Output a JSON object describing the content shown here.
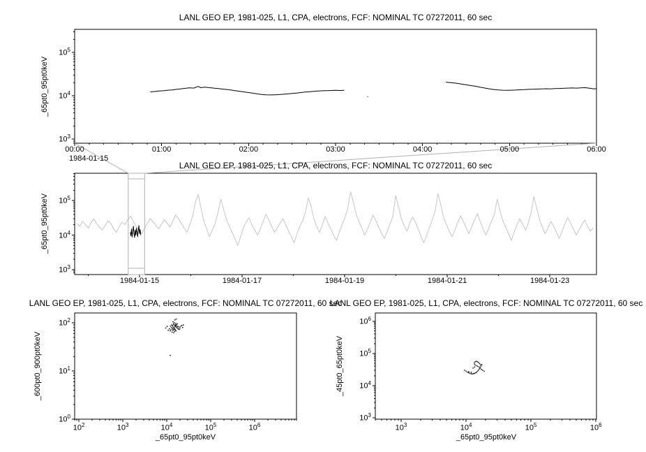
{
  "colors": {
    "background": "#ffffff",
    "frame": "#000000",
    "series_black": "#000000",
    "series_gray": "#c6c6c6",
    "connector_gray": "#b0b0b0"
  },
  "chart_data": [
    {
      "type": "line",
      "title": "LANL GEO EP, 1981-025, L1, CPA, electrons, FCF: NOMINAL TC 07272011, 60 sec",
      "xlabel": "",
      "ylabel": "_65pt0_95pt0keV",
      "x_context_label": "1984-01-15",
      "xaxis": {
        "type": "linear",
        "unit": "hours",
        "min": 0,
        "max": 6,
        "minor_step": 0.1666667,
        "ticks": [
          {
            "v": 0,
            "label": "00:00"
          },
          {
            "v": 1,
            "label": "01:00"
          },
          {
            "v": 2,
            "label": "02:00"
          },
          {
            "v": 3,
            "label": "03:00"
          },
          {
            "v": 4,
            "label": "04:00"
          },
          {
            "v": 5,
            "label": "05:00"
          },
          {
            "v": 6,
            "label": "06:00"
          }
        ]
      },
      "yaxis": {
        "type": "log",
        "min": 800,
        "max": 340000,
        "tick_exponents": [
          3,
          4,
          5
        ]
      },
      "series": [
        {
          "name": "flux-segment-1",
          "type": "line",
          "color": "#000000",
          "points": [
            [
              0.87,
              12200
            ],
            [
              0.92,
              12500
            ],
            [
              0.97,
              12800
            ],
            [
              1.02,
              13000
            ],
            [
              1.07,
              13400
            ],
            [
              1.12,
              13600
            ],
            [
              1.17,
              14000
            ],
            [
              1.22,
              14300
            ],
            [
              1.27,
              14800
            ],
            [
              1.32,
              15200
            ],
            [
              1.37,
              15000
            ],
            [
              1.42,
              16400
            ],
            [
              1.45,
              15300
            ],
            [
              1.5,
              15800
            ],
            [
              1.55,
              15300
            ],
            [
              1.6,
              15000
            ],
            [
              1.65,
              14600
            ],
            [
              1.7,
              14200
            ],
            [
              1.75,
              13900
            ],
            [
              1.8,
              13500
            ],
            [
              1.85,
              13000
            ],
            [
              1.9,
              12600
            ],
            [
              1.95,
              12200
            ],
            [
              2.0,
              11800
            ],
            [
              2.05,
              11400
            ],
            [
              2.1,
              11000
            ],
            [
              2.15,
              10700
            ],
            [
              2.2,
              10500
            ],
            [
              2.25,
              10400
            ],
            [
              2.3,
              10500
            ],
            [
              2.35,
              10600
            ],
            [
              2.4,
              10800
            ],
            [
              2.45,
              11000
            ],
            [
              2.5,
              11300
            ],
            [
              2.55,
              11500
            ],
            [
              2.6,
              11800
            ],
            [
              2.65,
              12100
            ],
            [
              2.7,
              12300
            ],
            [
              2.75,
              12600
            ],
            [
              2.8,
              12800
            ],
            [
              2.85,
              13000
            ],
            [
              2.9,
              13100
            ],
            [
              2.95,
              13200
            ],
            [
              3.0,
              13300
            ],
            [
              3.05,
              13200
            ],
            [
              3.1,
              13300
            ]
          ]
        },
        {
          "name": "flux-segment-2",
          "type": "line",
          "color": "#000000",
          "points": [
            [
              4.27,
              20500
            ],
            [
              4.32,
              20000
            ],
            [
              4.37,
              19600
            ],
            [
              4.42,
              19000
            ],
            [
              4.47,
              18300
            ],
            [
              4.52,
              17600
            ],
            [
              4.57,
              17000
            ],
            [
              4.62,
              16300
            ],
            [
              4.67,
              15600
            ],
            [
              4.72,
              15000
            ],
            [
              4.77,
              14400
            ],
            [
              4.82,
              13900
            ],
            [
              4.87,
              13600
            ],
            [
              4.92,
              13400
            ],
            [
              4.97,
              13300
            ],
            [
              5.02,
              13400
            ],
            [
              5.07,
              13500
            ],
            [
              5.12,
              13700
            ],
            [
              5.17,
              13800
            ],
            [
              5.22,
              14000
            ],
            [
              5.27,
              14100
            ],
            [
              5.32,
              14200
            ],
            [
              5.37,
              14300
            ],
            [
              5.42,
              14500
            ],
            [
              5.47,
              14400
            ],
            [
              5.52,
              14600
            ],
            [
              5.57,
              14700
            ],
            [
              5.62,
              14800
            ],
            [
              5.67,
              15000
            ],
            [
              5.72,
              15100
            ],
            [
              5.77,
              15000
            ],
            [
              5.82,
              15200
            ],
            [
              5.87,
              15300
            ],
            [
              5.92,
              14900
            ],
            [
              5.97,
              14300
            ],
            [
              6.0,
              14600
            ]
          ]
        },
        {
          "name": "isolated-sample",
          "type": "dots",
          "color": "#666666",
          "points": [
            [
              3.37,
              9500
            ]
          ]
        }
      ]
    },
    {
      "type": "line",
      "title": "LANL GEO EP, 1981-025, L1, CPA, electrons, FCF: NOMINAL TC 07272011, 60 sec",
      "xlabel": "",
      "ylabel": "_65pt0_95pt0keV",
      "xaxis": {
        "type": "linear",
        "unit": "day-of-1984-01",
        "min": 13.735,
        "max": 23.91,
        "minor_step": 1,
        "ticks": [
          {
            "v": 15,
            "label": "1984-01-15"
          },
          {
            "v": 17,
            "label": "1984-01-17"
          },
          {
            "v": 19,
            "label": "1984-01-19"
          },
          {
            "v": 21,
            "label": "1984-01-21"
          },
          {
            "v": 23,
            "label": "1984-01-23"
          }
        ]
      },
      "yaxis": {
        "type": "log",
        "min": 720,
        "max": 620000,
        "tick_exponents": [
          3,
          4,
          5
        ]
      },
      "zoom_box": {
        "x_min": 14.78,
        "x_max": 15.1
      },
      "series": [
        {
          "name": "context-flux-gray",
          "type": "line",
          "color": "#c6c6c6",
          "x0": 13.78,
          "dx": 0.055,
          "values": [
            22000,
            18000,
            25000,
            20000,
            16000,
            23000,
            30000,
            21000,
            17000,
            14000,
            19000,
            26000,
            22000,
            15000,
            12000,
            18000,
            24000,
            20000,
            28000,
            35000,
            25000,
            18000,
            14000,
            11000,
            16000,
            22000,
            30000,
            24000,
            19000,
            15000,
            21000,
            28000,
            22000,
            17000,
            26000,
            38000,
            30000,
            22000,
            16000,
            12000,
            20000,
            35000,
            90000,
            150000,
            60000,
            25000,
            15000,
            9000,
            14000,
            22000,
            45000,
            110000,
            55000,
            28000,
            18000,
            12000,
            8000,
            5000,
            9000,
            16000,
            24000,
            32000,
            20000,
            14000,
            10000,
            15000,
            25000,
            40000,
            28000,
            18000,
            12000,
            16000,
            22000,
            30000,
            20000,
            13000,
            9000,
            6000,
            11000,
            18000,
            26000,
            45000,
            120000,
            70000,
            30000,
            18000,
            12000,
            20000,
            35000,
            22000,
            15000,
            10000,
            7000,
            12000,
            20000,
            32000,
            60000,
            180000,
            90000,
            40000,
            25000,
            16000,
            10000,
            15000,
            24000,
            38000,
            26000,
            17000,
            11000,
            8000,
            13000,
            21000,
            35000,
            140000,
            65000,
            30000,
            19000,
            13000,
            22000,
            33000,
            24000,
            15000,
            9000,
            6000,
            10000,
            17000,
            28000,
            50000,
            160000,
            75000,
            32000,
            20000,
            13000,
            9000,
            14000,
            23000,
            36000,
            25000,
            16000,
            11000,
            18000,
            28000,
            42000,
            24000,
            15000,
            10000,
            16000,
            26000,
            40000,
            110000,
            50000,
            26000,
            17000,
            11000,
            7000,
            12000,
            20000,
            30000,
            21000,
            14000,
            22000,
            45000,
            130000,
            60000,
            28000,
            17000,
            11000,
            16000,
            25000,
            18000,
            12000,
            8000,
            13000,
            21000,
            32000,
            22000,
            15000,
            10000,
            14000,
            20000,
            27000,
            18000,
            13000,
            16000
          ]
        },
        {
          "name": "highlighted-interval-black",
          "type": "line",
          "color": "#000000",
          "x0": 14.82,
          "dx": 0.012,
          "values": [
            12000,
            9500,
            15000,
            8800,
            13000,
            18000,
            11000,
            8500,
            14000,
            10000,
            16000,
            12000,
            9000,
            13500,
            19000,
            11000,
            14500,
            10000
          ]
        }
      ]
    },
    {
      "type": "scatter",
      "title": "LANL GEO EP, 1981-025, L1, CPA, electrons, FCF: NOMINAL TC 07272011, 60 sec",
      "xlabel": "_65pt0_95pt0keV",
      "ylabel": "_600pt0_900pt0keV",
      "xaxis": {
        "type": "log",
        "min": 80,
        "max": 9000000,
        "tick_exponents": [
          2,
          3,
          4,
          5,
          6
        ]
      },
      "yaxis": {
        "type": "log",
        "min": 1,
        "max": 160,
        "tick_exponents": [
          0,
          1,
          2
        ]
      },
      "series": [
        {
          "name": "scatter-points",
          "type": "dots",
          "color": "#000000",
          "points": [
            [
              12000,
              68
            ],
            [
              13500,
              75
            ],
            [
              14000,
              82
            ],
            [
              15000,
              78
            ],
            [
              16000,
              85
            ],
            [
              14500,
              72
            ],
            [
              13000,
              90
            ],
            [
              15500,
              88
            ],
            [
              17000,
              80
            ],
            [
              18000,
              76
            ],
            [
              16500,
              92
            ],
            [
              14200,
              95
            ],
            [
              13800,
              70
            ],
            [
              15200,
              74
            ],
            [
              16800,
              86
            ],
            [
              19000,
              82
            ],
            [
              20000,
              78
            ],
            [
              21000,
              85
            ],
            [
              17500,
              95
            ],
            [
              14800,
              100
            ],
            [
              13200,
              64
            ],
            [
              12500,
              72
            ],
            [
              15800,
              90
            ],
            [
              16200,
              68
            ],
            [
              18500,
              74
            ],
            [
              22000,
              88
            ],
            [
              12800,
              80
            ],
            [
              14100,
              77
            ],
            [
              15400,
              83
            ],
            [
              16900,
              79
            ],
            [
              13600,
              87
            ],
            [
              14700,
              91
            ],
            [
              15100,
              66
            ],
            [
              17800,
              84
            ],
            [
              19500,
              73
            ],
            [
              23000,
              80
            ],
            [
              11500,
              75
            ],
            [
              12200,
              85
            ],
            [
              16100,
              97
            ],
            [
              14400,
              62
            ],
            [
              15700,
              71
            ],
            [
              24000,
              90
            ],
            [
              13900,
              105
            ],
            [
              15300,
              115
            ],
            [
              16400,
              120
            ],
            [
              9500,
              78
            ],
            [
              10200,
              84
            ],
            [
              10800,
              70
            ],
            [
              12000,
              21
            ]
          ]
        }
      ]
    },
    {
      "type": "scatter",
      "title": "LANL GEO EP, 1981-025, L1, CPA, electrons, FCF: NOMINAL TC 07272011, 60 sec",
      "xlabel": "_65pt0_95pt0keV",
      "ylabel": "_45pt0_65pt0keV",
      "xaxis": {
        "type": "log",
        "min": 400,
        "max": 1020000,
        "tick_exponents": [
          3,
          4,
          5
        ]
      },
      "yaxis": {
        "type": "log",
        "min": 910,
        "max": 1800000,
        "tick_exponents": [
          3,
          4,
          5,
          6
        ]
      },
      "series": [
        {
          "name": "scatter-points",
          "type": "dots",
          "color": "#000000",
          "points": [
            [
              9500,
              30000
            ],
            [
              10000,
              28000
            ],
            [
              10500,
              26000
            ],
            [
              11000,
              25000
            ],
            [
              11500,
              24000
            ],
            [
              12000,
              23500
            ],
            [
              12500,
              23000
            ],
            [
              13000,
              23500
            ],
            [
              13500,
              24000
            ],
            [
              14000,
              25000
            ],
            [
              14500,
              26000
            ],
            [
              15000,
              28000
            ],
            [
              15500,
              30000
            ],
            [
              16000,
              33000
            ],
            [
              16500,
              36000
            ],
            [
              17000,
              40000
            ],
            [
              16800,
              44000
            ],
            [
              16200,
              48000
            ],
            [
              15600,
              52000
            ],
            [
              15000,
              55000
            ],
            [
              14400,
              57000
            ],
            [
              13800,
              55000
            ],
            [
              13400,
              50000
            ],
            [
              13600,
              45000
            ],
            [
              14200,
              42000
            ],
            [
              15000,
              40000
            ],
            [
              15800,
              38000
            ],
            [
              16500,
              35000
            ],
            [
              17200,
              32000
            ],
            [
              18000,
              30000
            ],
            [
              12800,
              35000
            ],
            [
              13500,
              38000
            ],
            [
              12000,
              26000
            ],
            [
              19000,
              28000
            ],
            [
              11000,
              27000
            ],
            [
              17500,
              45000
            ]
          ]
        }
      ]
    }
  ]
}
